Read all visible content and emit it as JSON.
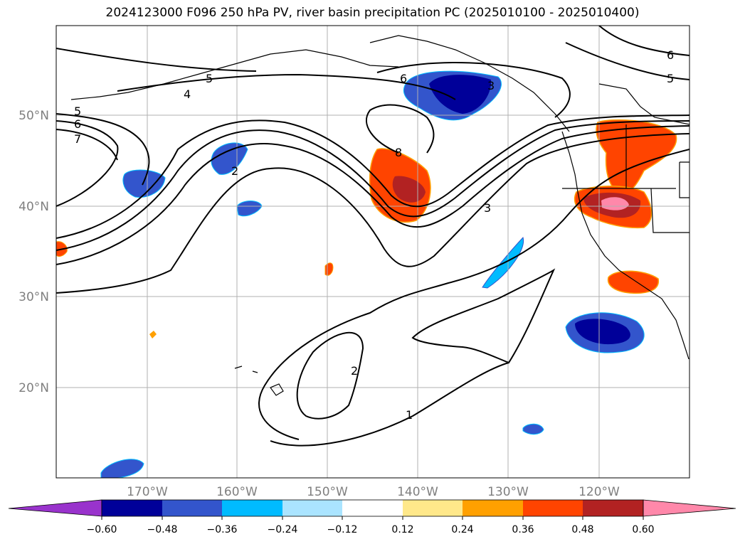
{
  "title": "2024123000 F096 250 hPa PV, river basin precipitation PC (2025010100 - 2025010400)",
  "lon_labels": [
    "170°W",
    "160°W",
    "150°W",
    "140°W",
    "130°W",
    "120°W"
  ],
  "lat_labels": [
    "50°N",
    "40°N",
    "30°N",
    "20°N"
  ],
  "contour_labels": [
    "1",
    "2",
    "3",
    "4",
    "5",
    "6",
    "7",
    "8"
  ],
  "colorbar": {
    "tick_labels": [
      "−0.60",
      "−0.48",
      "−0.36",
      "−0.24",
      "−0.12",
      "0.12",
      "0.24",
      "0.36",
      "0.48",
      "0.60"
    ],
    "colors": [
      "#9933cc",
      "#000099",
      "#3355cc",
      "#00bbff",
      "#aae4ff",
      "#ffffff",
      "#ffe88a",
      "#ffa000",
      "#ff4400",
      "#b22222",
      "#ff88aa"
    ]
  },
  "colors": {
    "strong_negative": "#000099",
    "negative": "#3355cc",
    "weak_negative": "#00bbff",
    "positive": "#ff4400",
    "strong_positive": "#b22222",
    "max_positive": "#ff88aa",
    "weak_positive": "#ffa000",
    "grid": "#b0b0b0"
  }
}
